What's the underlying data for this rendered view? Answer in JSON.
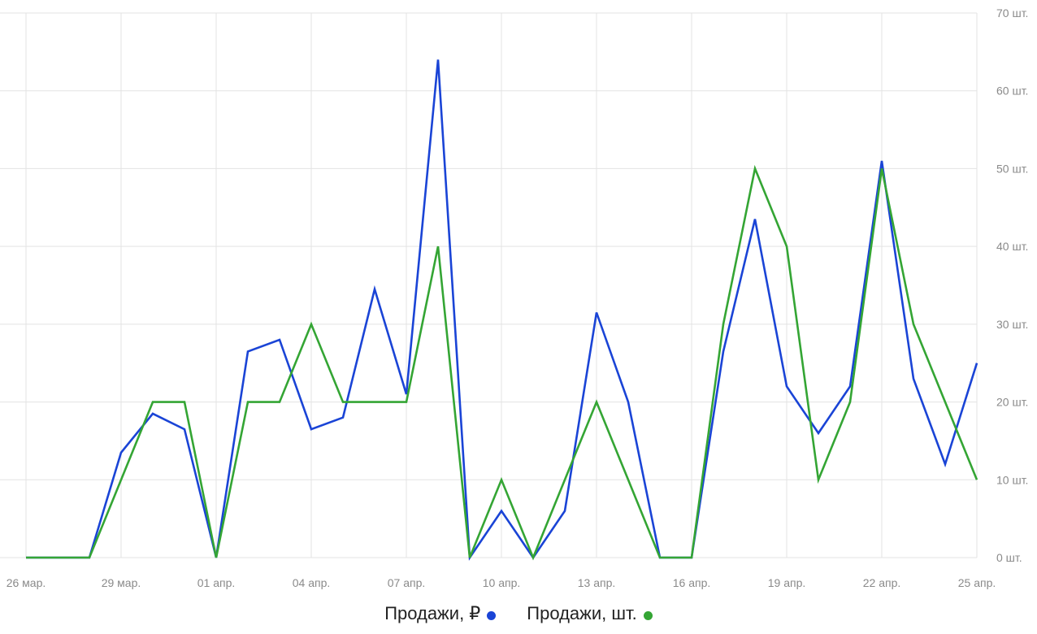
{
  "chart_data": {
    "type": "line",
    "x": [
      "26 мар.",
      "27 мар.",
      "28 мар.",
      "29 мар.",
      "30 мар.",
      "31 мар.",
      "01 апр.",
      "02 апр.",
      "03 апр.",
      "04 апр.",
      "05 апр.",
      "06 апр.",
      "07 апр.",
      "08 апр.",
      "09 апр.",
      "10 апр.",
      "11 апр.",
      "12 апр.",
      "13 апр.",
      "14 апр.",
      "15 апр.",
      "16 апр.",
      "17 апр.",
      "18 апр.",
      "19 апр.",
      "20 апр.",
      "21 апр.",
      "22 апр.",
      "23 апр.",
      "24 апр.",
      "25 апр."
    ],
    "x_tick_labels": [
      "26 мар.",
      "29 мар.",
      "01 апр.",
      "04 апр.",
      "07 апр.",
      "10 апр.",
      "13 апр.",
      "16 апр.",
      "19 апр.",
      "22 апр.",
      "25 апр."
    ],
    "series": [
      {
        "name": "Продажи, ₽",
        "color": "#1a44d6",
        "axis": "left",
        "values": [
          0,
          0,
          0,
          13.5,
          18.5,
          16.5,
          0,
          26.5,
          28,
          16.5,
          18,
          34.5,
          21,
          64,
          0,
          6,
          0,
          6,
          31.5,
          20,
          0,
          0,
          26.5,
          43.5,
          22,
          16,
          22,
          51,
          23,
          12,
          25
        ]
      },
      {
        "name": "Продажи, шт.",
        "color": "#34a534",
        "axis": "right",
        "values": [
          0,
          0,
          0,
          10,
          20,
          20,
          0,
          20,
          20,
          30,
          20,
          20,
          20,
          40,
          0,
          10,
          0,
          10,
          20,
          10,
          0,
          0,
          30,
          50,
          40,
          10,
          20,
          50,
          30,
          20,
          10
        ]
      }
    ],
    "y_right": {
      "ticks": [
        "0 шт.",
        "10 шт.",
        "20 шт.",
        "30 шт.",
        "40 шт.",
        "50 шт.",
        "60 шт.",
        "70 шт."
      ],
      "range": [
        0,
        70
      ]
    },
    "grid": true,
    "legend_position": "bottom-center"
  },
  "legend": {
    "item1": "Продажи, ₽",
    "item2": "Продажи, шт."
  },
  "colors": {
    "rub": "#1a44d6",
    "pcs": "#34a534"
  }
}
